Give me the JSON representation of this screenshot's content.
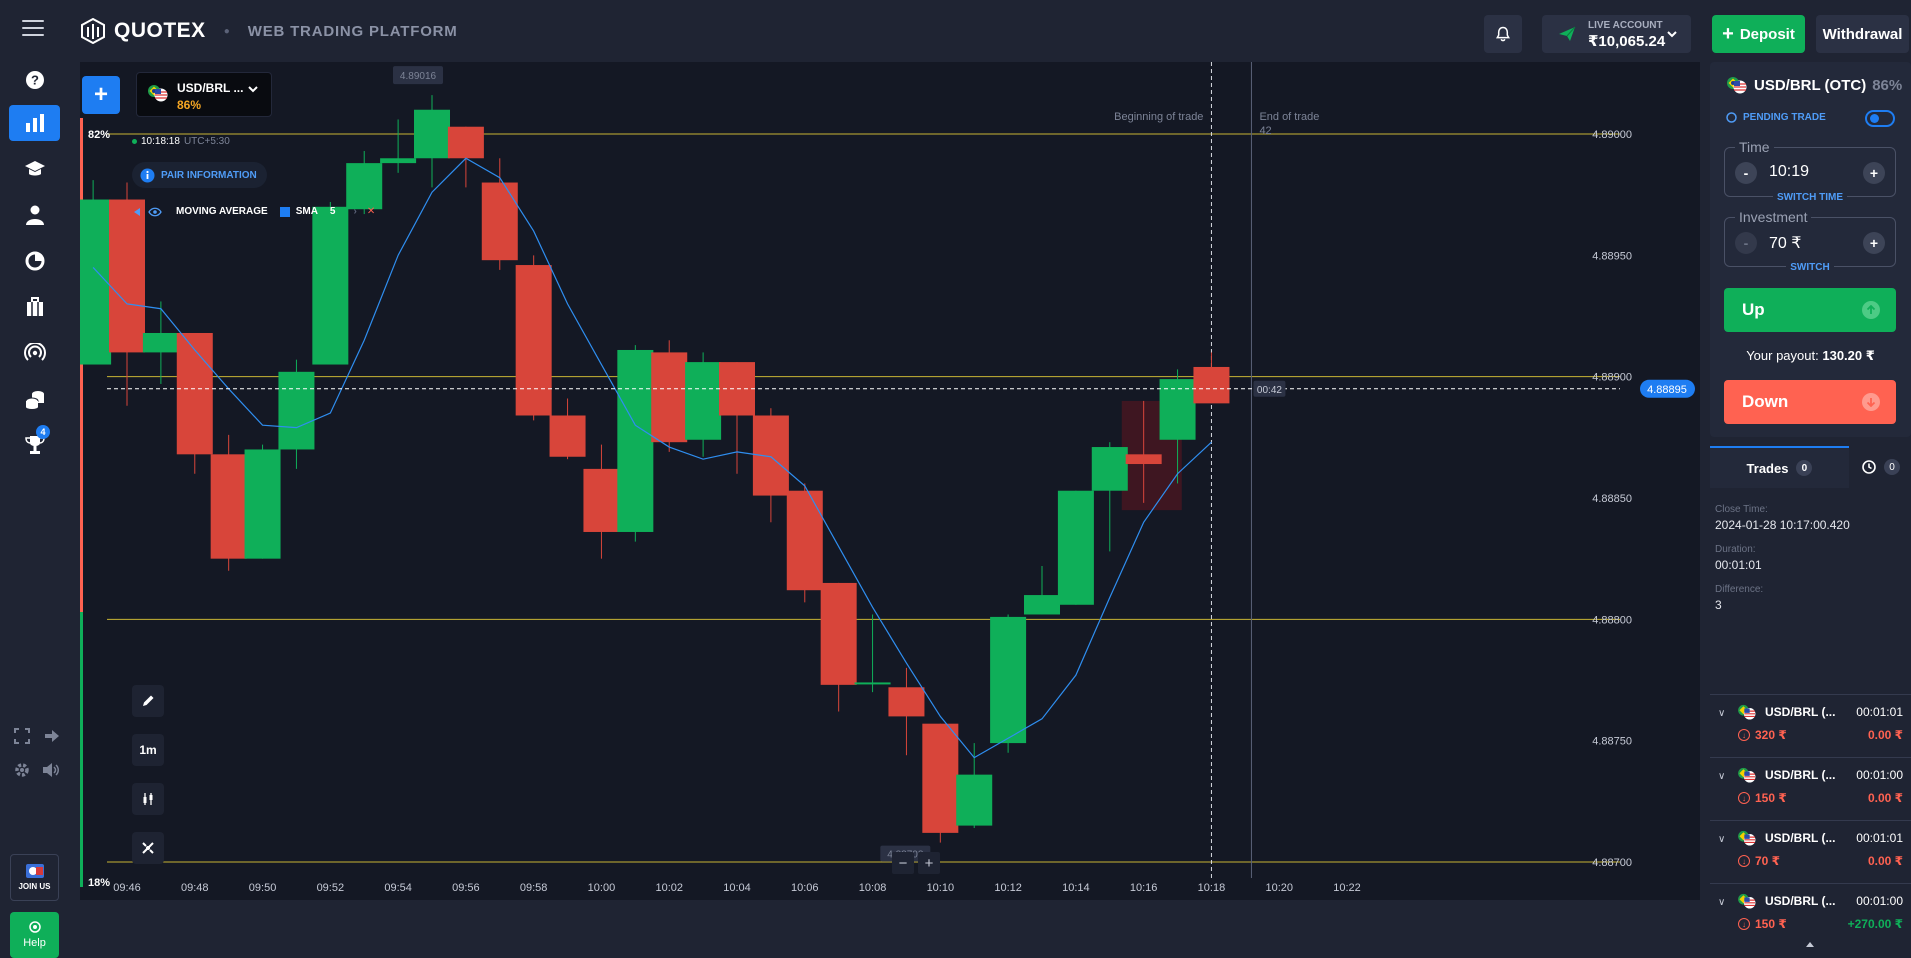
{
  "header": {
    "logo_text": "QUOTEX",
    "subtitle": "WEB TRADING PLATFORM",
    "account_label": "LIVE ACCOUNT",
    "balance": "₹10,065.24",
    "deposit_label": "Deposit",
    "withdrawal_label": "Withdrawal"
  },
  "sidebar": {
    "items": [
      {
        "name": "help-circle-icon"
      },
      {
        "name": "chart-icon",
        "active": true
      },
      {
        "name": "education-icon"
      },
      {
        "name": "profile-icon"
      },
      {
        "name": "analytics-icon"
      },
      {
        "name": "market-icon"
      },
      {
        "name": "signals-icon"
      },
      {
        "name": "tournaments-icon"
      },
      {
        "name": "trophy-icon",
        "badge": "4"
      }
    ],
    "join_label": "JOIN US",
    "help_label": "Help"
  },
  "chart": {
    "asset_name": "USD/BRL ...",
    "asset_payout": "86%",
    "time": "10:18:18",
    "timezone": "UTC+5:30",
    "pair_info_label": "PAIR INFORMATION",
    "indicator_name": "MOVING AVERAGE",
    "indicator_type": "SMA",
    "indicator_period": "5",
    "up_pct": "82%",
    "down_pct": "18%",
    "timeframe": "1m",
    "beginning_label": "Beginning of trade",
    "end_label": "End of trade",
    "end_seconds": "42",
    "timer": "00:42",
    "current_price": "4.88895",
    "high_tag": "4.89016",
    "low_tag": "4.88708",
    "zoom_out": "−",
    "zoom_in": "+"
  },
  "chart_data": {
    "type": "candlestick",
    "timeframe": "1m",
    "ylim": [
      4.8866,
      4.8906
    ],
    "y_ticks": [
      "4.89000",
      "4.88950",
      "4.88900",
      "4.88850",
      "4.88800",
      "4.88750",
      "4.88700"
    ],
    "x_ticks": [
      "09:46",
      "09:48",
      "09:50",
      "09:52",
      "09:54",
      "09:56",
      "09:58",
      "10:00",
      "10:02",
      "10:04",
      "10:06",
      "10:08",
      "10:10",
      "10:12",
      "10:14",
      "10:16",
      "10:18",
      "10:20",
      "10:22"
    ],
    "horizontal_levels": [
      4.89,
      4.889,
      4.888,
      4.887
    ],
    "candles": [
      {
        "t": "09:45",
        "o": 4.88905,
        "h": 4.88981,
        "l": 4.88905,
        "c": 4.88973
      },
      {
        "t": "09:46",
        "o": 4.88973,
        "h": 4.8898,
        "l": 4.88888,
        "c": 4.8891
      },
      {
        "t": "09:47",
        "o": 4.8891,
        "h": 4.88931,
        "l": 4.88897,
        "c": 4.88918
      },
      {
        "t": "09:48",
        "o": 4.88918,
        "h": 4.88918,
        "l": 4.8886,
        "c": 4.88868
      },
      {
        "t": "09:49",
        "o": 4.88868,
        "h": 4.88876,
        "l": 4.8882,
        "c": 4.88825
      },
      {
        "t": "09:50",
        "o": 4.88825,
        "h": 4.88872,
        "l": 4.88825,
        "c": 4.8887
      },
      {
        "t": "09:51",
        "o": 4.8887,
        "h": 4.88907,
        "l": 4.88862,
        "c": 4.88902
      },
      {
        "t": "09:52",
        "o": 4.88905,
        "h": 4.88972,
        "l": 4.88905,
        "c": 4.8897
      },
      {
        "t": "09:53",
        "o": 4.88969,
        "h": 4.88993,
        "l": 4.88967,
        "c": 4.88988
      },
      {
        "t": "09:54",
        "o": 4.88988,
        "h": 4.89006,
        "l": 4.88984,
        "c": 4.8899
      },
      {
        "t": "09:55",
        "o": 4.8899,
        "h": 4.89016,
        "l": 4.88978,
        "c": 4.8901
      },
      {
        "t": "09:56",
        "o": 4.89003,
        "h": 4.89003,
        "l": 4.88978,
        "c": 4.8899
      },
      {
        "t": "09:57",
        "o": 4.8898,
        "h": 4.8899,
        "l": 4.88944,
        "c": 4.88948
      },
      {
        "t": "09:58",
        "o": 4.88946,
        "h": 4.8895,
        "l": 4.88882,
        "c": 4.88884
      },
      {
        "t": "09:59",
        "o": 4.88884,
        "h": 4.88891,
        "l": 4.88866,
        "c": 4.88867
      },
      {
        "t": "10:00",
        "o": 4.88862,
        "h": 4.88872,
        "l": 4.88825,
        "c": 4.88836
      },
      {
        "t": "10:01",
        "o": 4.88836,
        "h": 4.88913,
        "l": 4.88832,
        "c": 4.88911
      },
      {
        "t": "10:02",
        "o": 4.8891,
        "h": 4.88915,
        "l": 4.88869,
        "c": 4.88873
      },
      {
        "t": "10:03",
        "o": 4.88874,
        "h": 4.8891,
        "l": 4.88867,
        "c": 4.88906
      },
      {
        "t": "10:04",
        "o": 4.88906,
        "h": 4.88906,
        "l": 4.8886,
        "c": 4.88884
      },
      {
        "t": "10:05",
        "o": 4.88884,
        "h": 4.88887,
        "l": 4.8884,
        "c": 4.88851
      },
      {
        "t": "10:06",
        "o": 4.88853,
        "h": 4.88856,
        "l": 4.88807,
        "c": 4.88812
      },
      {
        "t": "10:07",
        "o": 4.88815,
        "h": 4.88815,
        "l": 4.88762,
        "c": 4.88773
      },
      {
        "t": "10:08",
        "o": 4.88774,
        "h": 4.88802,
        "l": 4.8877,
        "c": 4.88774
      },
      {
        "t": "10:09",
        "o": 4.88772,
        "h": 4.8878,
        "l": 4.88744,
        "c": 4.8876
      },
      {
        "t": "10:10",
        "o": 4.88757,
        "h": 4.88757,
        "l": 4.88708,
        "c": 4.88712
      },
      {
        "t": "10:11",
        "o": 4.88715,
        "h": 4.88749,
        "l": 4.88714,
        "c": 4.88736
      },
      {
        "t": "10:12",
        "o": 4.88749,
        "h": 4.88802,
        "l": 4.88745,
        "c": 4.88801
      },
      {
        "t": "10:13",
        "o": 4.88802,
        "h": 4.88822,
        "l": 4.88802,
        "c": 4.8881
      },
      {
        "t": "10:14",
        "o": 4.88806,
        "h": 4.88853,
        "l": 4.88806,
        "c": 4.88853
      },
      {
        "t": "10:15",
        "o": 4.88853,
        "h": 4.88873,
        "l": 4.88828,
        "c": 4.88871
      },
      {
        "t": "10:16",
        "o": 4.88868,
        "h": 4.8889,
        "l": 4.88848,
        "c": 4.88864
      },
      {
        "t": "10:17",
        "o": 4.88874,
        "h": 4.88903,
        "l": 4.88856,
        "c": 4.88899
      },
      {
        "t": "10:18",
        "o": 4.88904,
        "h": 4.8891,
        "l": 4.8889,
        "c": 4.88889
      }
    ],
    "sma": {
      "name": "SMA 5",
      "t": [
        "09:45",
        "09:46",
        "09:47",
        "09:48",
        "09:49",
        "09:50",
        "09:51",
        "09:52",
        "09:53",
        "09:54",
        "09:55",
        "09:56",
        "09:57",
        "09:58",
        "09:59",
        "10:00",
        "10:01",
        "10:02",
        "10:03",
        "10:04",
        "10:05",
        "10:06",
        "10:07",
        "10:08",
        "10:09",
        "10:10",
        "10:11",
        "10:12",
        "10:13",
        "10:14",
        "10:15",
        "10:16",
        "10:17",
        "10:18"
      ],
      "values": [
        4.88945,
        4.8893,
        4.88928,
        4.88911,
        4.88895,
        4.8888,
        4.88879,
        4.88885,
        4.88915,
        4.8895,
        4.88976,
        4.8899,
        4.88982,
        4.8896,
        4.8893,
        4.88905,
        4.8888,
        4.88871,
        4.88866,
        4.88869,
        4.88867,
        4.88855,
        4.8883,
        4.88805,
        4.88782,
        4.8876,
        4.88743,
        4.88751,
        4.88759,
        4.88777,
        4.88809,
        4.8884,
        4.8886,
        4.88873
      ]
    }
  },
  "trade_panel": {
    "asset": "USD/BRL (OTC)",
    "payout_pct": "86%",
    "pending_label": "PENDING TRADE",
    "time_legend": "Time",
    "time_value": "10:19",
    "switch_time": "SWITCH TIME",
    "investment_legend": "Investment",
    "investment_value": "70 ₹",
    "switch_label": "SWITCH",
    "up_label": "Up",
    "payout_label": "Your payout:",
    "payout_value": "130.20 ₹",
    "down_label": "Down"
  },
  "trades": {
    "tab_label": "Trades",
    "count": "0",
    "history_count": "0",
    "close_time_label": "Close Time:",
    "close_time": "2024-01-28 10:17:00.420",
    "duration_label": "Duration:",
    "duration": "00:01:01",
    "difference_label": "Difference:",
    "difference": "3",
    "rows": [
      {
        "name": "USD/BRL (...",
        "duration": "00:01:01",
        "investment": "320 ₹",
        "result": "0.00 ₹",
        "win": false
      },
      {
        "name": "USD/BRL (...",
        "duration": "00:01:00",
        "investment": "150 ₹",
        "result": "0.00 ₹",
        "win": false
      },
      {
        "name": "USD/BRL (...",
        "duration": "00:01:01",
        "investment": "70 ₹",
        "result": "0.00 ₹",
        "win": false
      },
      {
        "name": "USD/BRL (...",
        "duration": "00:01:00",
        "investment": "150 ₹",
        "result": "+270.00 ₹",
        "win": true
      }
    ]
  },
  "colors": {
    "up": "#0faf59",
    "down": "#ff6251",
    "accent": "#1e7df2",
    "level": "#c8b535",
    "sma": "#2f8ef0"
  }
}
